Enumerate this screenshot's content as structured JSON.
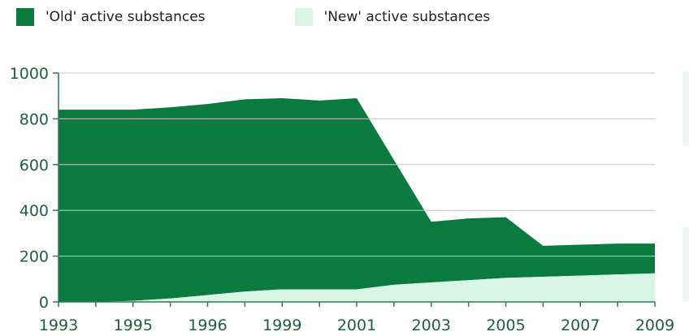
{
  "colors": {
    "old": "#0b7a3f",
    "new": "#d9f5e6",
    "axis": "#2f7a55",
    "tick_label": "#1f5e3f",
    "grid": "#c8c8c8",
    "right_decoration": "#eef7f1"
  },
  "chart_data": {
    "type": "area",
    "stacked": true,
    "title": "",
    "xlabel": "",
    "ylabel": "",
    "legend_position": "top-left",
    "grid": "horizontal",
    "xlim": [
      1993,
      2009
    ],
    "ylim": [
      0,
      1000
    ],
    "x_ticks": [
      1993,
      1995,
      1996,
      1999,
      2001,
      2003,
      2005,
      2007,
      2009
    ],
    "y_ticks": [
      0,
      200,
      400,
      600,
      800,
      1000
    ],
    "x": [
      1993,
      1994,
      1995,
      1996,
      1997,
      1998,
      1999,
      2000,
      2001,
      2002,
      2003,
      2004,
      2005,
      2006,
      2007,
      2008,
      2009
    ],
    "series": [
      {
        "name": "'New' active substances",
        "color": "#d9f5e6",
        "values": [
          0,
          0,
          5,
          15,
          30,
          45,
          55,
          55,
          55,
          75,
          85,
          95,
          105,
          110,
          115,
          120,
          125
        ]
      },
      {
        "name": "'Old' active substances",
        "color": "#0b7a3f",
        "values": [
          840,
          840,
          835,
          835,
          835,
          840,
          835,
          825,
          835,
          545,
          265,
          270,
          265,
          135,
          135,
          135,
          130
        ]
      }
    ]
  }
}
